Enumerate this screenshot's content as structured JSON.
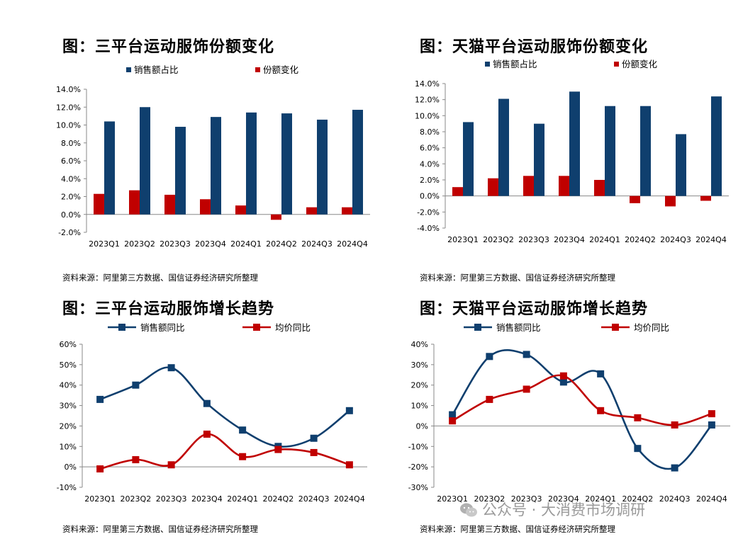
{
  "panels": [
    {
      "title": "图：三平台运动服饰份额变化",
      "source": "资料来源：阿里第三方数据、国信证券经济研究所整理"
    },
    {
      "title": "图：天猫平台运动服饰份额变化",
      "source": "资料来源：阿里第三方数据、国信证券经济研究所整理"
    },
    {
      "title": "图：三平台运动服饰增长趋势",
      "source": "资料来源：阿里第三方数据、国信证券经济研究所整理"
    },
    {
      "title": "图：天猫平台运动服饰增长趋势",
      "source": "资料来源：阿里第三方数据、国信证券经济研究所整理"
    }
  ],
  "watermark": {
    "text": "公众号 · 大消费市场调研",
    "icon": "wechat-icon"
  },
  "colors": {
    "blue": "#0f3f6e",
    "red": "#c00000",
    "axis": "#888888"
  },
  "chart_data": [
    {
      "type": "bar",
      "title": "图：三平台运动服饰份额变化",
      "categories": [
        "2023Q1",
        "2023Q2",
        "2023Q3",
        "2023Q4",
        "2024Q1",
        "2024Q2",
        "2024Q3",
        "2024Q4"
      ],
      "series": [
        {
          "name": "销售额占比",
          "color": "#0f3f6e",
          "values": [
            10.4,
            12.0,
            9.8,
            10.9,
            11.4,
            11.3,
            10.6,
            11.7
          ]
        },
        {
          "name": "份额变化",
          "color": "#c00000",
          "values": [
            2.3,
            2.7,
            2.2,
            1.7,
            1.0,
            -0.6,
            0.8,
            0.8
          ]
        }
      ],
      "ylim": [
        -2,
        14
      ],
      "yticks": [
        "-2.0%",
        "0.0%",
        "2.0%",
        "4.0%",
        "6.0%",
        "8.0%",
        "10.0%",
        "12.0%",
        "14.0%"
      ],
      "ytick_values": [
        -2,
        0,
        2,
        4,
        6,
        8,
        10,
        12,
        14
      ],
      "legend": "top"
    },
    {
      "type": "bar",
      "title": "图：天猫平台运动服饰份额变化",
      "categories": [
        "2023Q1",
        "2023Q2",
        "2023Q3",
        "2023Q4",
        "2024Q1",
        "2024Q2",
        "2024Q3",
        "2024Q4"
      ],
      "series": [
        {
          "name": "销售额占比",
          "color": "#0f3f6e",
          "values": [
            9.2,
            12.1,
            9.0,
            13.0,
            11.2,
            11.2,
            7.7,
            12.4
          ]
        },
        {
          "name": "份额变化",
          "color": "#c00000",
          "values": [
            1.1,
            2.2,
            2.5,
            2.5,
            2.0,
            -0.9,
            -1.3,
            -0.6
          ]
        }
      ],
      "ylim": [
        -4,
        14
      ],
      "yticks": [
        "-4.0%",
        "-2.0%",
        "0.0%",
        "2.0%",
        "4.0%",
        "6.0%",
        "8.0%",
        "10.0%",
        "12.0%",
        "14.0%"
      ],
      "ytick_values": [
        -4,
        -2,
        0,
        2,
        4,
        6,
        8,
        10,
        12,
        14
      ],
      "legend": "top"
    },
    {
      "type": "line",
      "title": "图：三平台运动服饰增长趋势",
      "categories": [
        "2023Q1",
        "2023Q2",
        "2023Q3",
        "2023Q4",
        "2024Q1",
        "2024Q2",
        "2024Q3",
        "2024Q4"
      ],
      "series": [
        {
          "name": "销售额同比",
          "color": "#0f3f6e",
          "values": [
            33,
            40,
            48.5,
            31,
            18,
            10,
            14,
            27.5
          ]
        },
        {
          "name": "均价同比",
          "color": "#c00000",
          "values": [
            -1,
            3.5,
            1,
            16,
            5,
            8.5,
            7,
            1
          ]
        }
      ],
      "ylim": [
        -10,
        60
      ],
      "yticks": [
        "-10%",
        "0%",
        "10%",
        "20%",
        "30%",
        "40%",
        "50%",
        "60%"
      ],
      "ytick_values": [
        -10,
        0,
        10,
        20,
        30,
        40,
        50,
        60
      ],
      "legend": "top"
    },
    {
      "type": "line",
      "title": "图：天猫平台运动服饰增长趋势",
      "categories": [
        "2023Q1",
        "2023Q2",
        "2023Q3",
        "2023Q4",
        "2024Q1",
        "2024Q2",
        "2024Q3",
        "2024Q4"
      ],
      "series": [
        {
          "name": "销售额同比",
          "color": "#0f3f6e",
          "values": [
            5.5,
            34,
            35,
            21.5,
            25.5,
            -11,
            -20.5,
            0.5
          ]
        },
        {
          "name": "均价同比",
          "color": "#c00000",
          "values": [
            2.5,
            13,
            18,
            24.5,
            7.5,
            4,
            0.5,
            6
          ]
        }
      ],
      "ylim": [
        -30,
        40
      ],
      "yticks": [
        "-30%",
        "-20%",
        "-10%",
        "0%",
        "10%",
        "20%",
        "30%",
        "40%"
      ],
      "ytick_values": [
        -30,
        -20,
        -10,
        0,
        10,
        20,
        30,
        40
      ],
      "legend": "top"
    }
  ]
}
